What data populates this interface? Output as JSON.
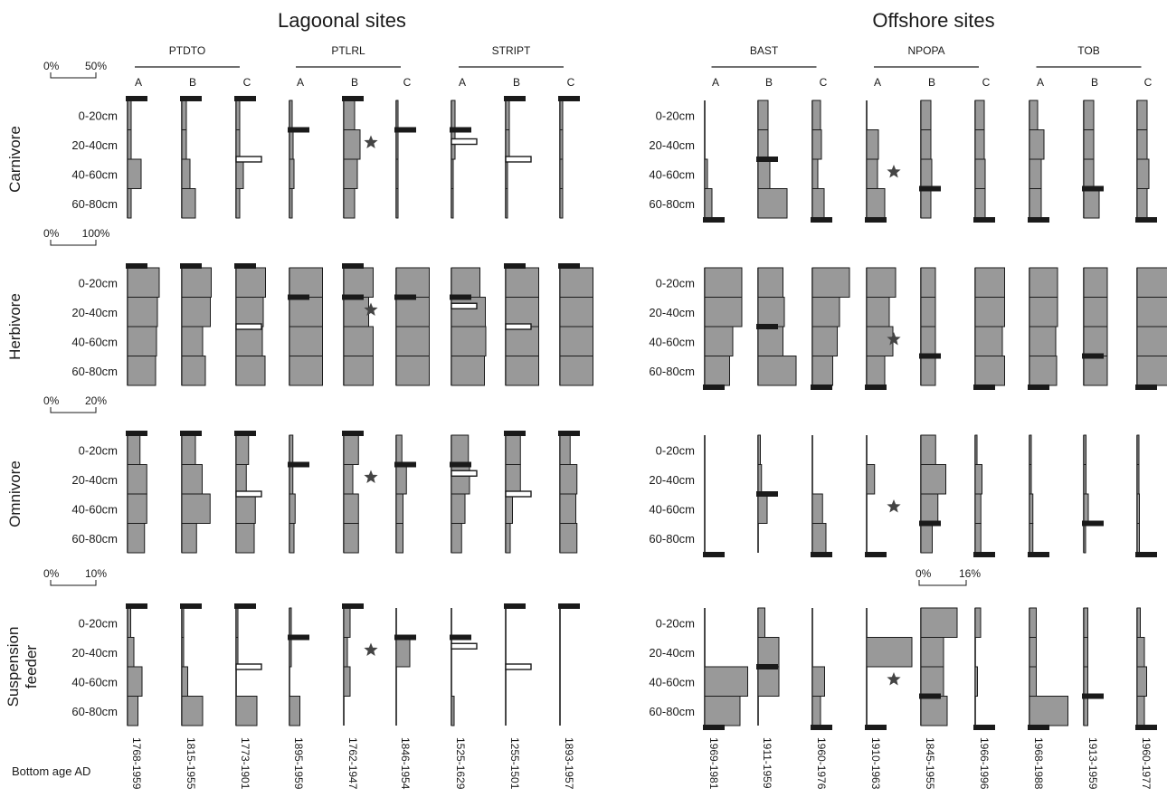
{
  "chart_data": {
    "type": "bar",
    "panels": [
      "Lagoonal sites",
      "Offshore sites"
    ],
    "depth_labels": [
      "0-20cm",
      "20-40cm",
      "40-60cm",
      "60-80cm"
    ],
    "bottom_age_label": "Bottom age AD",
    "groups": [
      {
        "name": "PTDTO",
        "panel": 0,
        "cores": [
          "A",
          "B",
          "C"
        ]
      },
      {
        "name": "PTLRL",
        "panel": 0,
        "cores": [
          "A",
          "B",
          "C"
        ]
      },
      {
        "name": "STRIPT",
        "panel": 0,
        "cores": [
          "A",
          "B",
          "C"
        ]
      },
      {
        "name": "BAST",
        "panel": 1,
        "cores": [
          "A",
          "B",
          "C"
        ]
      },
      {
        "name": "NPOPA",
        "panel": 1,
        "cores": [
          "A",
          "B",
          "C"
        ]
      },
      {
        "name": "TOB",
        "panel": 1,
        "cores": [
          "A",
          "B",
          "C"
        ]
      }
    ],
    "bottom_ages": [
      "1768-1959",
      "1815-1955",
      "1773-1901",
      "1895-1959",
      "1762-1947",
      "1846-1954",
      "1525-1629",
      "1255-1501",
      "1893-1957",
      "1969-1981",
      "1911-1959",
      "1960-1976",
      "1910-1963",
      "1845-1955",
      "1966-1996",
      "1968-1988",
      "1913-1959",
      "1960-1977"
    ],
    "feeding_groups": [
      {
        "name": "Carnivore",
        "scale": {
          "min_label": "0%",
          "max_label": "50%",
          "max": 50
        },
        "values": [
          [
            4,
            4,
            15,
            4
          ],
          [
            5,
            5,
            9,
            15
          ],
          [
            4,
            4,
            8,
            4
          ],
          [
            3,
            4,
            5,
            3
          ],
          [
            12,
            18,
            15,
            12
          ],
          [
            2,
            2,
            2,
            2
          ],
          [
            4,
            4,
            2,
            2
          ],
          [
            4,
            4,
            2,
            2
          ],
          [
            3,
            3,
            3,
            3
          ],
          [
            0,
            0,
            3,
            8
          ],
          [
            11,
            11,
            13,
            32
          ],
          [
            9,
            10,
            6,
            13
          ],
          [
            0,
            13,
            12,
            20
          ],
          [
            11,
            11,
            12,
            11
          ],
          [
            10,
            10,
            11,
            11
          ],
          [
            9,
            16,
            13,
            13
          ],
          [
            11,
            11,
            11,
            17
          ],
          [
            11,
            11,
            13,
            11
          ]
        ],
        "marker_depth": [
          null,
          null,
          null,
          null,
          1,
          null,
          null,
          null,
          null,
          null,
          null,
          null,
          2,
          null,
          null,
          null,
          null,
          null
        ],
        "bars": [
          {
            "col": 0,
            "pos": 0,
            "style": "top"
          },
          {
            "col": 1,
            "pos": 0,
            "style": "top"
          },
          {
            "col": 2,
            "pos": 0,
            "style": "top"
          },
          {
            "col": 2,
            "pos": 2,
            "style": "open"
          },
          {
            "col": 3,
            "pos": 1,
            "style": "solid"
          },
          {
            "col": 4,
            "pos": 0,
            "style": "top"
          },
          {
            "col": 5,
            "pos": 1,
            "style": "solid"
          },
          {
            "col": 6,
            "pos": 1,
            "style": "solid"
          },
          {
            "col": 6,
            "pos": 1.4,
            "style": "open"
          },
          {
            "col": 7,
            "pos": 0,
            "style": "top"
          },
          {
            "col": 7,
            "pos": 2,
            "style": "open"
          },
          {
            "col": 8,
            "pos": 0,
            "style": "top"
          },
          {
            "col": 9,
            "pos": 4,
            "style": "bottom"
          },
          {
            "col": 10,
            "pos": 2,
            "style": "solid"
          },
          {
            "col": 11,
            "pos": 4,
            "style": "bottom"
          },
          {
            "col": 12,
            "pos": 4,
            "style": "bottom"
          },
          {
            "col": 13,
            "pos": 3,
            "style": "solid"
          },
          {
            "col": 14,
            "pos": 4,
            "style": "bottom"
          },
          {
            "col": 15,
            "pos": 4,
            "style": "bottom"
          },
          {
            "col": 16,
            "pos": 3,
            "style": "solid"
          },
          {
            "col": 17,
            "pos": 4,
            "style": "bottom"
          }
        ]
      },
      {
        "name": "Herbivore",
        "scale": {
          "min_label": "0%",
          "max_label": "100%",
          "max": 100
        },
        "values": [
          [
            70,
            66,
            64,
            62
          ],
          [
            65,
            63,
            46,
            52
          ],
          [
            65,
            60,
            58,
            64
          ],
          [
            73,
            73,
            73,
            73
          ],
          [
            65,
            55,
            65,
            65
          ],
          [
            73,
            73,
            73,
            73
          ],
          [
            63,
            75,
            76,
            73
          ],
          [
            73,
            73,
            73,
            73
          ],
          [
            73,
            73,
            73,
            73
          ],
          [
            82,
            82,
            62,
            55
          ],
          [
            55,
            58,
            55,
            84
          ],
          [
            82,
            60,
            55,
            45
          ],
          [
            64,
            50,
            58,
            40
          ],
          [
            32,
            32,
            32,
            32
          ],
          [
            65,
            65,
            60,
            65
          ],
          [
            62,
            62,
            58,
            60
          ],
          [
            52,
            52,
            52,
            52
          ],
          [
            70,
            70,
            70,
            70
          ]
        ],
        "marker_depth": [
          null,
          null,
          null,
          null,
          1,
          null,
          null,
          null,
          null,
          null,
          null,
          null,
          2,
          null,
          null,
          null,
          null,
          null
        ],
        "bars": [
          {
            "col": 0,
            "pos": 0,
            "style": "top"
          },
          {
            "col": 1,
            "pos": 0,
            "style": "top"
          },
          {
            "col": 2,
            "pos": 0,
            "style": "top"
          },
          {
            "col": 2,
            "pos": 2,
            "style": "open"
          },
          {
            "col": 3,
            "pos": 1,
            "style": "solid"
          },
          {
            "col": 4,
            "pos": 0,
            "style": "top"
          },
          {
            "col": 4,
            "pos": 1,
            "style": "solid"
          },
          {
            "col": 5,
            "pos": 1,
            "style": "solid"
          },
          {
            "col": 6,
            "pos": 1,
            "style": "solid"
          },
          {
            "col": 6,
            "pos": 1.3,
            "style": "open"
          },
          {
            "col": 7,
            "pos": 0,
            "style": "top"
          },
          {
            "col": 7,
            "pos": 2,
            "style": "open"
          },
          {
            "col": 8,
            "pos": 0,
            "style": "top"
          },
          {
            "col": 9,
            "pos": 4,
            "style": "bottom"
          },
          {
            "col": 10,
            "pos": 2,
            "style": "solid"
          },
          {
            "col": 11,
            "pos": 4,
            "style": "bottom"
          },
          {
            "col": 12,
            "pos": 4,
            "style": "bottom"
          },
          {
            "col": 13,
            "pos": 3,
            "style": "solid"
          },
          {
            "col": 14,
            "pos": 4,
            "style": "bottom"
          },
          {
            "col": 15,
            "pos": 4,
            "style": "bottom"
          },
          {
            "col": 16,
            "pos": 3,
            "style": "solid"
          },
          {
            "col": 17,
            "pos": 4,
            "style": "bottom"
          }
        ]
      },
      {
        "name": "Omnivore",
        "scale": {
          "min_label": "0%",
          "max_label": "20%",
          "max": 20
        },
        "values": [
          [
            5.5,
            8.5,
            8.5,
            7.5
          ],
          [
            6,
            9,
            12.5,
            6.5
          ],
          [
            5.5,
            4.5,
            8.5,
            8
          ],
          [
            1.5,
            1.5,
            2.5,
            2
          ],
          [
            6.5,
            4,
            6.5,
            6.5
          ],
          [
            2.5,
            4.5,
            3,
            3
          ],
          [
            7.5,
            8,
            6,
            4.5
          ],
          [
            6.5,
            6.5,
            3,
            2
          ],
          [
            4.5,
            7.5,
            7,
            7.5
          ],
          [
            0,
            0,
            0,
            0
          ],
          [
            1,
            1.5,
            4,
            0
          ],
          [
            0,
            0,
            4.5,
            6
          ],
          [
            0,
            3.5,
            0,
            0
          ],
          [
            6.5,
            11,
            7.5,
            5
          ],
          [
            0.5,
            3,
            2.5,
            2.5
          ],
          [
            0.5,
            0.5,
            1.5,
            1.5
          ],
          [
            1,
            1,
            2,
            0.5
          ],
          [
            0.5,
            0.5,
            1,
            1
          ]
        ],
        "marker_depth": [
          null,
          null,
          null,
          null,
          1,
          null,
          null,
          null,
          null,
          null,
          null,
          null,
          2,
          null,
          null,
          null,
          null,
          null
        ],
        "bars": [
          {
            "col": 0,
            "pos": 0,
            "style": "top"
          },
          {
            "col": 1,
            "pos": 0,
            "style": "top"
          },
          {
            "col": 2,
            "pos": 0,
            "style": "top"
          },
          {
            "col": 2,
            "pos": 2,
            "style": "open"
          },
          {
            "col": 3,
            "pos": 1,
            "style": "solid"
          },
          {
            "col": 4,
            "pos": 0,
            "style": "top"
          },
          {
            "col": 5,
            "pos": 1,
            "style": "solid"
          },
          {
            "col": 6,
            "pos": 1,
            "style": "solid"
          },
          {
            "col": 6,
            "pos": 1.3,
            "style": "open"
          },
          {
            "col": 7,
            "pos": 0,
            "style": "top"
          },
          {
            "col": 7,
            "pos": 2,
            "style": "open"
          },
          {
            "col": 8,
            "pos": 0,
            "style": "top"
          },
          {
            "col": 9,
            "pos": 4,
            "style": "bottom"
          },
          {
            "col": 10,
            "pos": 2,
            "style": "solid"
          },
          {
            "col": 11,
            "pos": 4,
            "style": "bottom"
          },
          {
            "col": 12,
            "pos": 4,
            "style": "bottom"
          },
          {
            "col": 13,
            "pos": 3,
            "style": "solid"
          },
          {
            "col": 14,
            "pos": 4,
            "style": "bottom"
          },
          {
            "col": 15,
            "pos": 4,
            "style": "bottom"
          },
          {
            "col": 16,
            "pos": 3,
            "style": "solid"
          },
          {
            "col": 17,
            "pos": 4,
            "style": "bottom"
          }
        ]
      },
      {
        "name": "Suspension feeder",
        "scale": {
          "min_label": "0%",
          "max_label": "10%",
          "max": 10
        },
        "values": [
          [
            0.7,
            1.4,
            3.2,
            2.3
          ],
          [
            0.3,
            0.3,
            1.3,
            4.6
          ],
          [
            0.3,
            0.3,
            0,
            4.6
          ],
          [
            0.3,
            0.3,
            0,
            2.3
          ],
          [
            1.4,
            0.8,
            1.4,
            0
          ],
          [
            0,
            3,
            0,
            0
          ],
          [
            0,
            0,
            0,
            0.6
          ],
          [
            0,
            0,
            0,
            0
          ],
          [
            0,
            0,
            0,
            0
          ],
          [
            0,
            0,
            9.5,
            7.8
          ],
          [
            1.5,
            4.6,
            4.6,
            0
          ],
          [
            0,
            0,
            2.7,
            1.8
          ],
          [
            0,
            10,
            0,
            0
          ],
          [
            8,
            5,
            5,
            5.8
          ],
          [
            1.2,
            0,
            0.5,
            0
          ],
          [
            1.5,
            1.5,
            1.5,
            8.5
          ],
          [
            0.9,
            0.9,
            0.9,
            0.9
          ],
          [
            0.7,
            1.6,
            2.1,
            1.6
          ]
        ],
        "marker_depth": [
          null,
          null,
          null,
          null,
          1,
          null,
          null,
          null,
          null,
          null,
          null,
          null,
          2,
          null,
          null,
          null,
          null,
          null
        ],
        "extra_scale": {
          "min_label": "0%",
          "max_label": "16%",
          "col": 13
        },
        "bars": [
          {
            "col": 0,
            "pos": 0,
            "style": "top"
          },
          {
            "col": 1,
            "pos": 0,
            "style": "top"
          },
          {
            "col": 2,
            "pos": 0,
            "style": "top"
          },
          {
            "col": 2,
            "pos": 2,
            "style": "open"
          },
          {
            "col": 3,
            "pos": 1,
            "style": "solid"
          },
          {
            "col": 4,
            "pos": 0,
            "style": "top"
          },
          {
            "col": 5,
            "pos": 1,
            "style": "solid"
          },
          {
            "col": 6,
            "pos": 1,
            "style": "solid"
          },
          {
            "col": 6,
            "pos": 1.3,
            "style": "open"
          },
          {
            "col": 7,
            "pos": 0,
            "style": "top"
          },
          {
            "col": 7,
            "pos": 2,
            "style": "open"
          },
          {
            "col": 8,
            "pos": 0,
            "style": "top"
          },
          {
            "col": 9,
            "pos": 4,
            "style": "bottom"
          },
          {
            "col": 10,
            "pos": 2,
            "style": "solid"
          },
          {
            "col": 11,
            "pos": 4,
            "style": "bottom"
          },
          {
            "col": 12,
            "pos": 4,
            "style": "bottom"
          },
          {
            "col": 13,
            "pos": 3,
            "style": "solid"
          },
          {
            "col": 14,
            "pos": 4,
            "style": "bottom"
          },
          {
            "col": 15,
            "pos": 4,
            "style": "bottom"
          },
          {
            "col": 16,
            "pos": 3,
            "style": "solid"
          },
          {
            "col": 17,
            "pos": 4,
            "style": "bottom"
          }
        ]
      }
    ],
    "colors": {
      "bar_fill": "#999999",
      "bar_stroke": "#1a1a1a",
      "marker": "#1a1a1a",
      "star": "#444444"
    }
  }
}
